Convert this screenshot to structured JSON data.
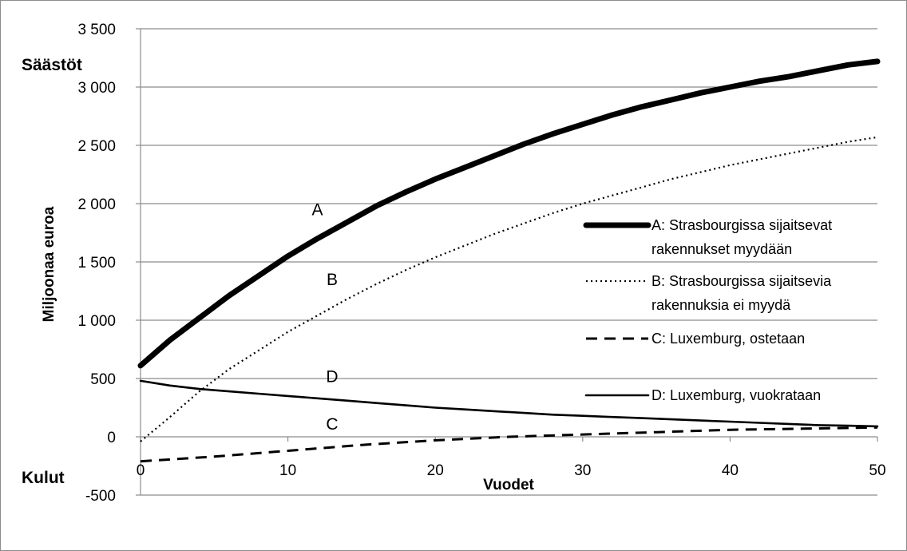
{
  "chart_data": {
    "type": "line",
    "title": "",
    "xlabel": "Vuodet",
    "ylabel": "Miljoonaa euroa",
    "top_label": "Säästöt",
    "bottom_label": "Kulut",
    "xlim": [
      0,
      50
    ],
    "ylim": [
      -500,
      3500
    ],
    "x_ticks": [
      0,
      10,
      20,
      30,
      40,
      50
    ],
    "x_tick_labels": [
      "0",
      "10",
      "20",
      "30",
      "40",
      "50"
    ],
    "y_ticks": [
      -500,
      0,
      500,
      1000,
      1500,
      2000,
      2500,
      3000,
      3500
    ],
    "y_tick_labels": [
      "-500",
      "0",
      "500",
      "1 000",
      "1 500",
      "2 000",
      "2 500",
      "3 000",
      "3 500"
    ],
    "grid": "horizontal",
    "legend_position": "right",
    "series": [
      {
        "name": "A: Strasbourgissa sijaitsevat rakennukset myydään",
        "legend_lines": [
          "A: Strasbourgissa sijaitsevat",
          "rakennukset myydään"
        ],
        "marker_label": "A",
        "marker_label_at": [
          12,
          1900
        ],
        "style": "thick",
        "color": "#000000",
        "x": [
          0,
          2,
          4,
          6,
          8,
          10,
          12,
          14,
          16,
          18,
          20,
          22,
          24,
          26,
          28,
          30,
          32,
          34,
          36,
          38,
          40,
          42,
          44,
          46,
          48,
          50
        ],
        "values": [
          610,
          830,
          1020,
          1210,
          1380,
          1550,
          1700,
          1840,
          1980,
          2100,
          2210,
          2310,
          2410,
          2510,
          2600,
          2680,
          2760,
          2830,
          2890,
          2950,
          3000,
          3050,
          3090,
          3140,
          3190,
          3220
        ]
      },
      {
        "name": "B: Strasbourgissa sijaitsevia rakennuksia ei myydä",
        "legend_lines": [
          "B: Strasbourgissa sijaitsevia",
          "rakennuksia ei myydä"
        ],
        "marker_label": "B",
        "marker_label_at": [
          13,
          1300
        ],
        "style": "dotted",
        "color": "#000000",
        "x": [
          0,
          2,
          4,
          6,
          8,
          10,
          12,
          14,
          16,
          18,
          20,
          22,
          24,
          26,
          28,
          30,
          32,
          34,
          36,
          38,
          40,
          42,
          44,
          46,
          48,
          50
        ],
        "values": [
          -40,
          170,
          390,
          580,
          740,
          900,
          1040,
          1180,
          1310,
          1430,
          1540,
          1640,
          1740,
          1830,
          1920,
          2000,
          2070,
          2140,
          2210,
          2270,
          2330,
          2380,
          2430,
          2480,
          2530,
          2570
        ]
      },
      {
        "name": "C: Luxemburg, ostetaan",
        "legend_lines": [
          "C: Luxemburg, ostetaan"
        ],
        "marker_label": "C",
        "marker_label_at": [
          13,
          60
        ],
        "style": "dashed",
        "color": "#000000",
        "x": [
          0,
          5,
          10,
          15,
          20,
          25,
          30,
          35,
          40,
          45,
          50
        ],
        "values": [
          -210,
          -170,
          -120,
          -70,
          -30,
          0,
          20,
          40,
          60,
          70,
          80
        ]
      },
      {
        "name": "D: Luxemburg, vuokrataan",
        "legend_lines": [
          "D: Luxemburg, vuokrataan"
        ],
        "marker_label": "D",
        "marker_label_at": [
          13,
          470
        ],
        "style": "solid",
        "color": "#000000",
        "x": [
          0,
          2,
          4,
          6,
          8,
          10,
          12,
          14,
          16,
          18,
          20,
          22,
          24,
          26,
          28,
          30,
          32,
          34,
          36,
          38,
          40,
          42,
          44,
          46,
          48,
          50
        ],
        "values": [
          480,
          440,
          410,
          390,
          370,
          350,
          330,
          310,
          290,
          270,
          250,
          235,
          220,
          205,
          190,
          180,
          170,
          160,
          150,
          140,
          130,
          120,
          110,
          100,
          95,
          90
        ]
      }
    ]
  }
}
